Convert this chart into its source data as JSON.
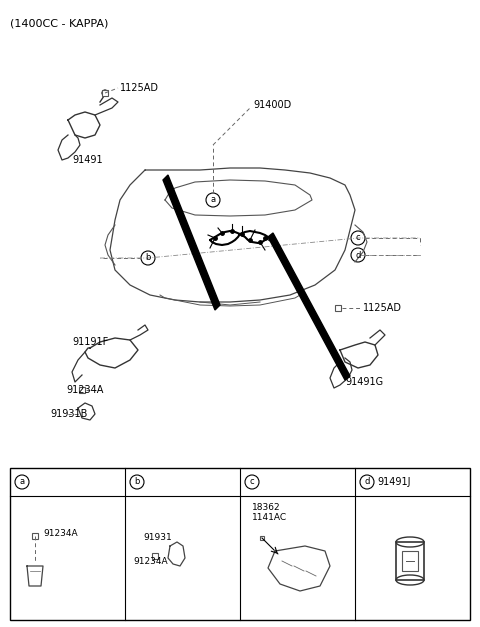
{
  "title": "(1400CC - KAPPA)",
  "bg_color": "#ffffff",
  "line_color": "#000000",
  "light_line_color": "#888888",
  "fig_width": 4.8,
  "fig_height": 6.27,
  "dpi": 100,
  "labels": {
    "top_left": "1125AD",
    "part_91491": "91491",
    "part_91400D": "91400D",
    "part_91191F": "91191F",
    "part_91234A": "91234A",
    "part_91931B": "91931B",
    "part_1125AD_right": "1125AD",
    "part_91491G": "91491G",
    "callout_a": "a",
    "callout_b": "b",
    "callout_c": "c",
    "callout_d": "d",
    "box_a_label": "a",
    "box_b_label": "b",
    "box_c_label": "c",
    "box_d_label": "d",
    "box_d_part": "91491J",
    "box_a_part": "91234A",
    "box_b_part1": "91931",
    "box_b_part2": "91234A",
    "box_c_part1": "18362",
    "box_c_part2": "1141AC"
  }
}
